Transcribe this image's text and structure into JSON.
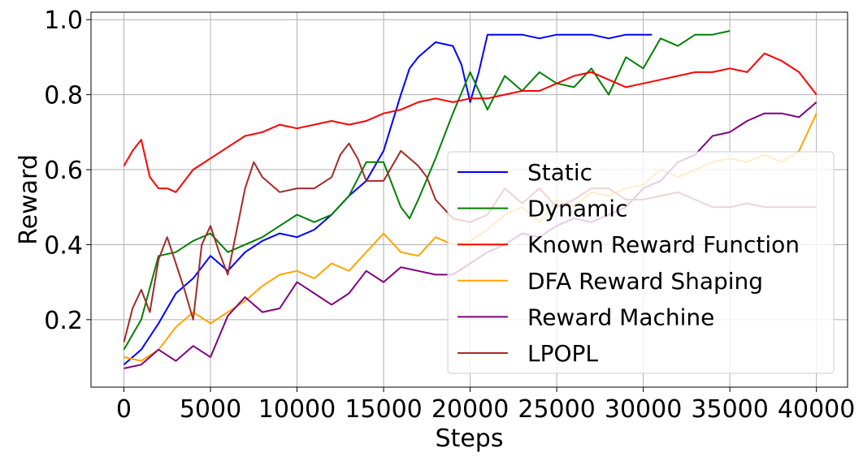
{
  "chart_data": {
    "type": "line",
    "xlabel": "Steps",
    "ylabel": "Reward",
    "xlim": [
      -1900,
      41800
    ],
    "ylim": [
      0.02,
      1.02
    ],
    "xticks": [
      0,
      5000,
      10000,
      15000,
      20000,
      25000,
      30000,
      35000,
      40000
    ],
    "yticks": [
      0.2,
      0.4,
      0.6,
      0.8,
      1.0
    ],
    "xtick_labels": [
      "0",
      "5000",
      "10000",
      "15000",
      "20000",
      "25000",
      "30000",
      "35000",
      "40000"
    ],
    "ytick_labels": [
      "0.2",
      "0.4",
      "0.6",
      "0.8",
      "1.0"
    ],
    "grid": true,
    "legend_position": "lower-right",
    "series": [
      {
        "name": "Static",
        "color": "#0000ff",
        "x": [
          0,
          1000,
          2000,
          3000,
          4000,
          5000,
          6000,
          7000,
          8000,
          9000,
          10000,
          11000,
          12000,
          13000,
          14000,
          15000,
          16000,
          16500,
          17000,
          18000,
          19000,
          19500,
          20000,
          20500,
          21000,
          22000,
          23000,
          24000,
          25000,
          26000,
          27000,
          28000,
          29000,
          30000,
          30500
        ],
        "values": [
          0.08,
          0.12,
          0.19,
          0.27,
          0.31,
          0.37,
          0.33,
          0.38,
          0.41,
          0.43,
          0.42,
          0.44,
          0.48,
          0.53,
          0.57,
          0.65,
          0.8,
          0.87,
          0.9,
          0.94,
          0.93,
          0.88,
          0.78,
          0.86,
          0.96,
          0.96,
          0.96,
          0.95,
          0.96,
          0.96,
          0.96,
          0.95,
          0.96,
          0.96,
          0.96
        ]
      },
      {
        "name": "Dynamic",
        "color": "#008000",
        "x": [
          0,
          1000,
          2000,
          3000,
          4000,
          5000,
          6000,
          7000,
          8000,
          9000,
          10000,
          11000,
          12000,
          13000,
          14000,
          15000,
          16000,
          16500,
          17000,
          18000,
          19000,
          20000,
          21000,
          22000,
          23000,
          24000,
          25000,
          26000,
          27000,
          28000,
          29000,
          30000,
          31000,
          32000,
          33000,
          34000,
          35000
        ],
        "values": [
          0.12,
          0.2,
          0.37,
          0.38,
          0.41,
          0.43,
          0.38,
          0.4,
          0.42,
          0.45,
          0.48,
          0.46,
          0.48,
          0.53,
          0.62,
          0.62,
          0.5,
          0.47,
          0.52,
          0.63,
          0.75,
          0.86,
          0.76,
          0.85,
          0.81,
          0.86,
          0.83,
          0.82,
          0.87,
          0.8,
          0.9,
          0.87,
          0.95,
          0.93,
          0.96,
          0.96,
          0.97
        ]
      },
      {
        "name": "Known Reward Function",
        "color": "#ff0000",
        "x": [
          0,
          500,
          1000,
          1500,
          2000,
          2500,
          3000,
          4000,
          5000,
          6000,
          7000,
          8000,
          9000,
          10000,
          11000,
          12000,
          13000,
          14000,
          15000,
          16000,
          17000,
          18000,
          19000,
          20000,
          21000,
          22000,
          23000,
          24000,
          25000,
          26000,
          27000,
          28000,
          29000,
          30000,
          31000,
          32000,
          33000,
          34000,
          35000,
          36000,
          37000,
          38000,
          39000,
          40000
        ],
        "values": [
          0.61,
          0.65,
          0.68,
          0.58,
          0.55,
          0.55,
          0.54,
          0.6,
          0.63,
          0.66,
          0.69,
          0.7,
          0.72,
          0.71,
          0.72,
          0.73,
          0.72,
          0.73,
          0.75,
          0.76,
          0.78,
          0.79,
          0.78,
          0.79,
          0.79,
          0.8,
          0.81,
          0.81,
          0.83,
          0.85,
          0.86,
          0.84,
          0.82,
          0.83,
          0.84,
          0.85,
          0.86,
          0.86,
          0.87,
          0.86,
          0.91,
          0.89,
          0.86,
          0.8
        ]
      },
      {
        "name": "DFA Reward Shaping",
        "color": "#ffa500",
        "x": [
          0,
          1000,
          2000,
          3000,
          4000,
          5000,
          6000,
          7000,
          8000,
          9000,
          10000,
          11000,
          12000,
          13000,
          14000,
          15000,
          16000,
          17000,
          18000,
          19000,
          20000,
          21000,
          22000,
          23000,
          24000,
          25000,
          26000,
          27000,
          28000,
          29000,
          30000,
          31000,
          32000,
          33000,
          34000,
          35000,
          36000,
          37000,
          38000,
          39000,
          40000
        ],
        "values": [
          0.1,
          0.09,
          0.12,
          0.18,
          0.22,
          0.19,
          0.22,
          0.25,
          0.29,
          0.32,
          0.33,
          0.31,
          0.35,
          0.33,
          0.38,
          0.43,
          0.38,
          0.37,
          0.42,
          0.4,
          0.41,
          0.44,
          0.48,
          0.5,
          0.46,
          0.52,
          0.5,
          0.54,
          0.53,
          0.55,
          0.56,
          0.6,
          0.58,
          0.6,
          0.62,
          0.63,
          0.62,
          0.64,
          0.62,
          0.65,
          0.75
        ]
      },
      {
        "name": "Reward Machine",
        "color": "#800080",
        "x": [
          0,
          1000,
          2000,
          3000,
          4000,
          5000,
          6000,
          7000,
          8000,
          9000,
          10000,
          11000,
          12000,
          13000,
          14000,
          15000,
          16000,
          17000,
          18000,
          19000,
          20000,
          21000,
          22000,
          23000,
          24000,
          25000,
          26000,
          27000,
          28000,
          29000,
          30000,
          31000,
          32000,
          33000,
          34000,
          35000,
          36000,
          37000,
          38000,
          39000,
          40000
        ],
        "values": [
          0.07,
          0.08,
          0.12,
          0.09,
          0.13,
          0.1,
          0.21,
          0.26,
          0.22,
          0.23,
          0.3,
          0.27,
          0.24,
          0.27,
          0.33,
          0.3,
          0.34,
          0.33,
          0.32,
          0.32,
          0.35,
          0.38,
          0.4,
          0.43,
          0.42,
          0.45,
          0.47,
          0.46,
          0.48,
          0.5,
          0.55,
          0.57,
          0.62,
          0.64,
          0.69,
          0.7,
          0.73,
          0.75,
          0.75,
          0.74,
          0.78
        ]
      },
      {
        "name": "LPOPL",
        "color": "#a52a2a",
        "x": [
          0,
          500,
          1000,
          1500,
          2000,
          2500,
          3000,
          3500,
          4000,
          4500,
          5000,
          5500,
          6000,
          7000,
          7500,
          8000,
          9000,
          10000,
          11000,
          12000,
          12500,
          13000,
          13500,
          14000,
          15000,
          16000,
          17000,
          17500,
          18000,
          19000,
          20000,
          21000,
          22000,
          23000,
          24000,
          25000,
          26000,
          27000,
          28000,
          29000,
          30000,
          31000,
          32000,
          33000,
          34000,
          35000,
          36000,
          37000,
          38000,
          39000,
          40000
        ],
        "values": [
          0.14,
          0.23,
          0.28,
          0.22,
          0.36,
          0.42,
          0.35,
          0.28,
          0.2,
          0.4,
          0.45,
          0.38,
          0.32,
          0.55,
          0.62,
          0.58,
          0.54,
          0.55,
          0.55,
          0.58,
          0.64,
          0.67,
          0.63,
          0.57,
          0.57,
          0.65,
          0.61,
          0.58,
          0.52,
          0.47,
          0.46,
          0.48,
          0.55,
          0.51,
          0.55,
          0.5,
          0.52,
          0.55,
          0.55,
          0.52,
          0.52,
          0.53,
          0.54,
          0.52,
          0.5,
          0.5,
          0.51,
          0.5,
          0.5,
          0.5,
          0.5
        ]
      }
    ]
  }
}
